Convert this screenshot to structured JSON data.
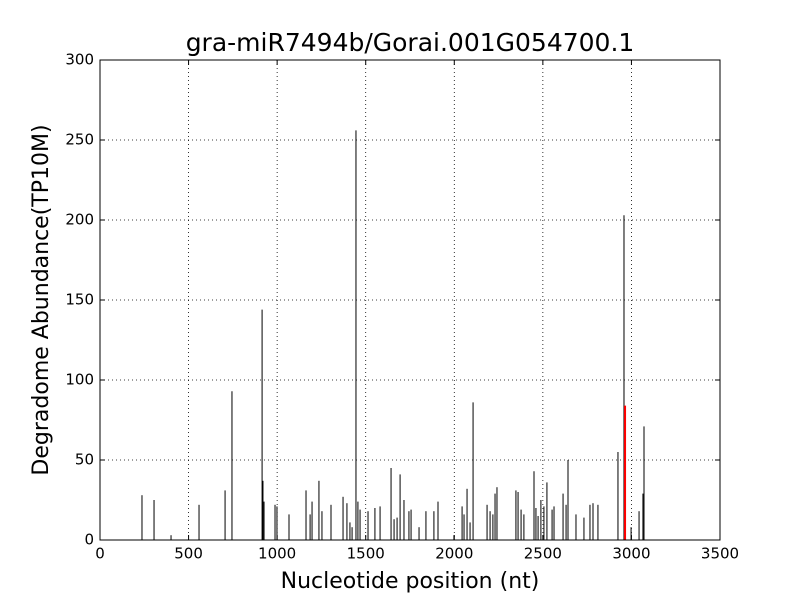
{
  "chart_data": {
    "type": "spike",
    "title": "gra-miR7494b/Gorai.001G054700.1",
    "x_label": "Nucleotide position (nt)",
    "y_label": "Degradome Abundance(TP10M)",
    "xlim": [
      0,
      3500
    ],
    "xticks": [
      0,
      500,
      1000,
      1500,
      2000,
      2500,
      3000,
      3500
    ],
    "ylim": [
      0,
      300
    ],
    "yticks": [
      0,
      50,
      100,
      150,
      200,
      250,
      300
    ],
    "grid": true,
    "series": [
      {
        "color": "#000000",
        "x": [
          237,
          305,
          401,
          559,
          706,
          745,
          915,
          920,
          926,
          988,
          999,
          1067,
          1163,
          1186,
          1197,
          1236,
          1253,
          1304,
          1372,
          1394,
          1411,
          1423,
          1445,
          1456,
          1468,
          1513,
          1552,
          1581,
          1643,
          1660,
          1677,
          1694,
          1716,
          1744,
          1756,
          1801,
          1840,
          1885,
          1908,
          1998,
          2044,
          2055,
          2072,
          2089,
          2106,
          2185,
          2202,
          2218,
          2230,
          2241,
          2348,
          2360,
          2377,
          2393,
          2450,
          2461,
          2473,
          2489,
          2506,
          2523,
          2552,
          2563,
          2614,
          2631,
          2642,
          2687,
          2732,
          2766,
          2783,
          2811,
          2924,
          2958,
          2998,
          3043,
          3065,
          3071
        ],
        "values": [
          28,
          25,
          3,
          22,
          31,
          93,
          144,
          37,
          24,
          22,
          21,
          16,
          31,
          16,
          24,
          37,
          18,
          22,
          27,
          23,
          11,
          8,
          256,
          24,
          19,
          18,
          20,
          21,
          45,
          13,
          14,
          41,
          25,
          18,
          19,
          8,
          18,
          18,
          24,
          3,
          21,
          16,
          32,
          11,
          86,
          22,
          18,
          16,
          29,
          33,
          31,
          30,
          19,
          16,
          43,
          20,
          15,
          25,
          21,
          36,
          19,
          21,
          29,
          22,
          50,
          16,
          14,
          22,
          23,
          22,
          55,
          203,
          8,
          18,
          29,
          71
        ]
      },
      {
        "color": "#ff0000",
        "x": [
          2964
        ],
        "values": [
          84
        ]
      }
    ]
  }
}
